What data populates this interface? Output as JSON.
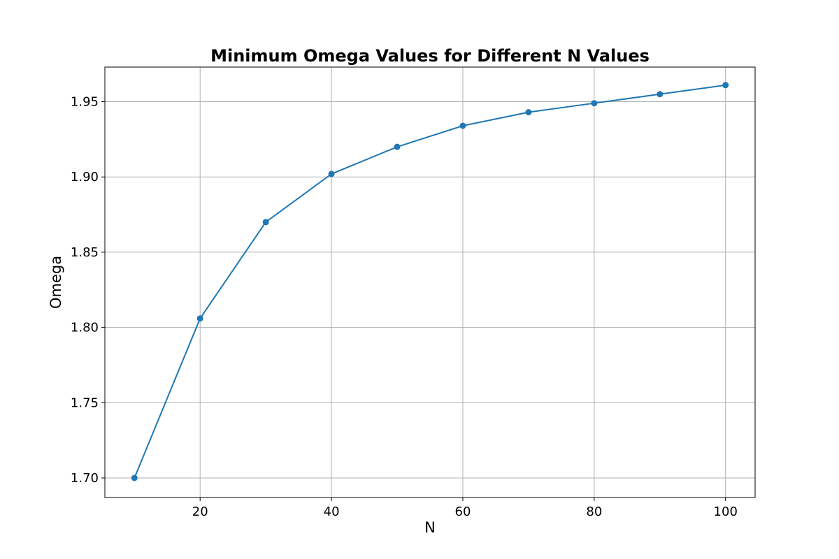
{
  "chart_data": {
    "type": "line",
    "title": "Minimum Omega Values for Different N Values",
    "xlabel": "N",
    "ylabel": "Omega",
    "xlim": [
      5.5,
      104.5
    ],
    "ylim": [
      1.687,
      1.973
    ],
    "xticks": [
      20,
      40,
      60,
      80,
      100
    ],
    "yticks": [
      1.7,
      1.75,
      1.8,
      1.85,
      1.9,
      1.95
    ],
    "xtick_labels": [
      "20",
      "40",
      "60",
      "80",
      "100"
    ],
    "ytick_labels": [
      "1.70",
      "1.75",
      "1.80",
      "1.85",
      "1.90",
      "1.95"
    ],
    "grid": true,
    "series": [
      {
        "color": "#1f77b4",
        "marker": "circle",
        "x": [
          10,
          20,
          30,
          40,
          50,
          60,
          70,
          80,
          90,
          100
        ],
        "values": [
          1.7,
          1.806,
          1.87,
          1.902,
          1.92,
          1.934,
          1.943,
          1.949,
          1.955,
          1.961
        ]
      }
    ]
  }
}
